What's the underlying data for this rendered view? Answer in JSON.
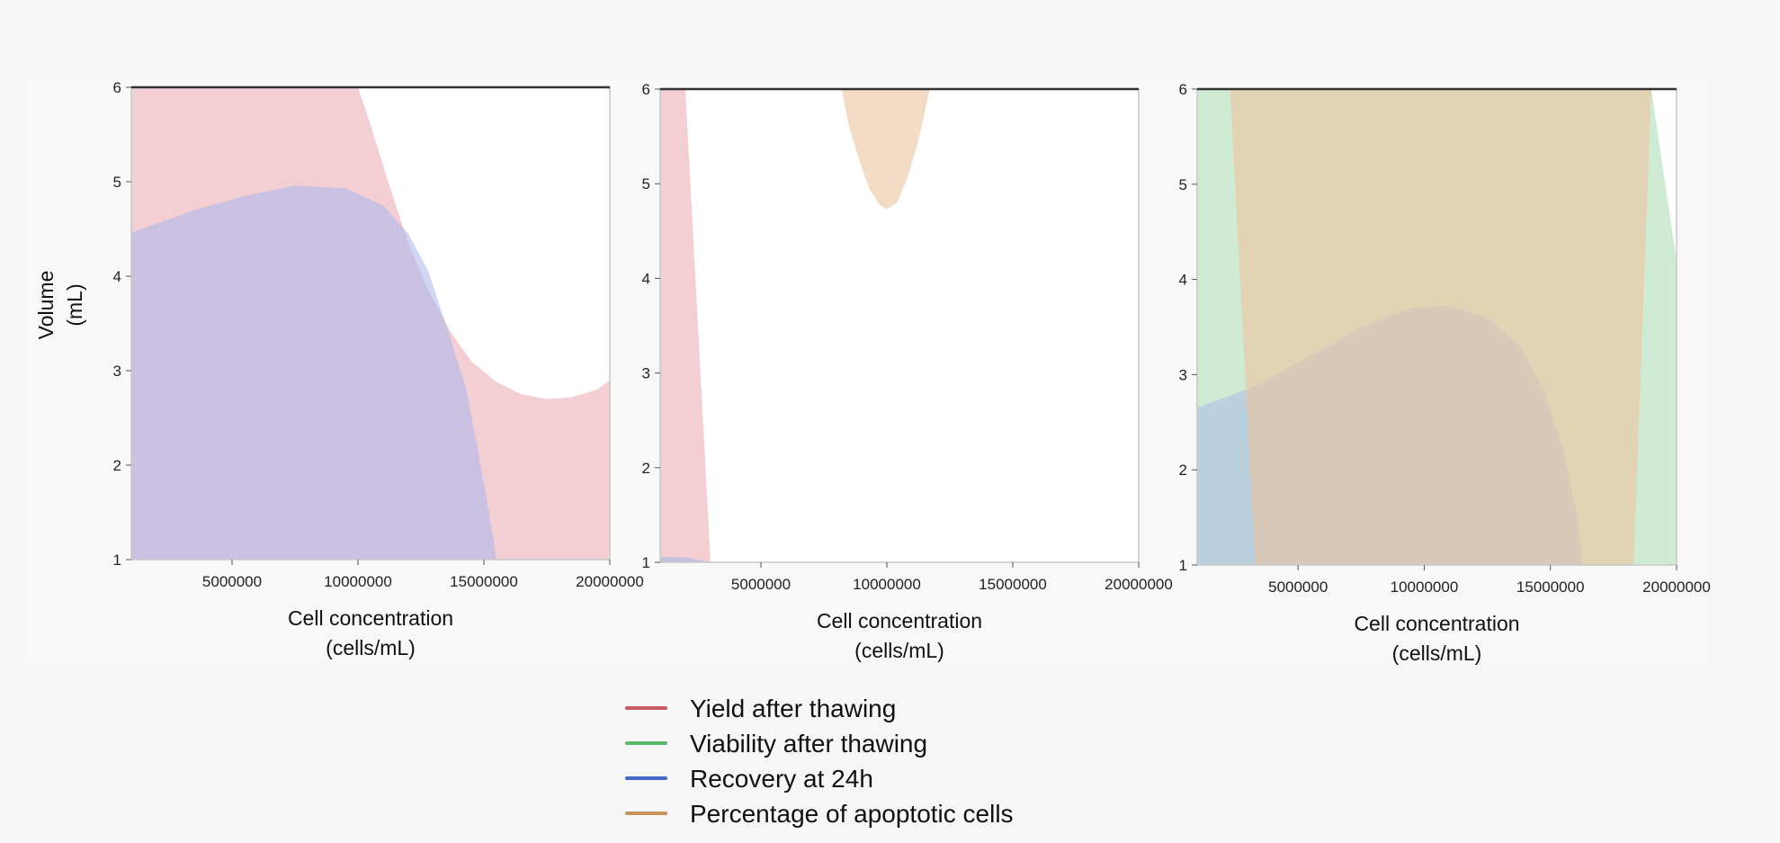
{
  "colors": {
    "yield": "#e8a0aa",
    "viability": "#9fd8a8",
    "recovery": "#a7b7ec",
    "apoptotic": "#ecc39e",
    "yield_line": "#c85a64",
    "viability_line": "#5bb86a",
    "recovery_line": "#4468c8",
    "apoptotic_line": "#c8935a"
  },
  "legend": [
    {
      "key": "yield",
      "label": "Yield after thawing"
    },
    {
      "key": "viability",
      "label": "Viability after thawing"
    },
    {
      "key": "recovery",
      "label": "Recovery at 24h"
    },
    {
      "key": "apoptotic",
      "label": "Percentage of apoptotic cells"
    }
  ],
  "chart_data": [
    {
      "type": "area",
      "title": "",
      "xlabel": "Cell concentration",
      "xlabel_unit": "(cells/mL)",
      "ylabel": "Volume",
      "ylabel_unit": "(mL)",
      "xlim": [
        1000000,
        20000000
      ],
      "ylim": [
        1,
        6
      ],
      "xticks": [
        5000000,
        10000000,
        15000000,
        20000000
      ],
      "yticks": [
        1,
        2,
        3,
        4,
        5,
        6
      ],
      "regions": [
        {
          "series": "yield",
          "opacity": 0.5,
          "polygon": [
            [
              1000000,
              1
            ],
            [
              20000000,
              1
            ],
            [
              20000000,
              2.9
            ],
            [
              19500000,
              2.8
            ],
            [
              18500000,
              2.72
            ],
            [
              17500000,
              2.7
            ],
            [
              16500000,
              2.75
            ],
            [
              15500000,
              2.88
            ],
            [
              14500000,
              3.1
            ],
            [
              13700000,
              3.4
            ],
            [
              12800000,
              3.85
            ],
            [
              12000000,
              4.35
            ],
            [
              11200000,
              5
            ],
            [
              10500000,
              5.6
            ],
            [
              10000000,
              6
            ],
            [
              1000000,
              6
            ]
          ]
        },
        {
          "series": "recovery",
          "opacity": 0.55,
          "polygon": [
            [
              1000000,
              1
            ],
            [
              15500000,
              1
            ],
            [
              15200000,
              1.5
            ],
            [
              14800000,
              2.1
            ],
            [
              14300000,
              2.8
            ],
            [
              13600000,
              3.4
            ],
            [
              12800000,
              4.05
            ],
            [
              12000000,
              4.45
            ],
            [
              11000000,
              4.75
            ],
            [
              9500000,
              4.93
            ],
            [
              7500000,
              4.96
            ],
            [
              5500000,
              4.85
            ],
            [
              3500000,
              4.7
            ],
            [
              1000000,
              4.46
            ]
          ]
        }
      ]
    },
    {
      "type": "area",
      "title": "",
      "xlabel": "Cell concentration",
      "xlabel_unit": "(cells/mL)",
      "ylabel": "",
      "ylabel_unit": "",
      "xlim": [
        1000000,
        20000000
      ],
      "ylim": [
        1,
        6
      ],
      "xticks": [
        5000000,
        10000000,
        15000000,
        20000000
      ],
      "yticks": [
        1,
        2,
        3,
        4,
        5,
        6
      ],
      "regions": [
        {
          "series": "yield",
          "opacity": 0.5,
          "polygon": [
            [
              1000000,
              1
            ],
            [
              3000000,
              1
            ],
            [
              2000000,
              6
            ],
            [
              1000000,
              6
            ]
          ]
        },
        {
          "series": "recovery",
          "opacity": 0.6,
          "polygon": [
            [
              1000000,
              1
            ],
            [
              3000000,
              1
            ],
            [
              2000000,
              1.05
            ],
            [
              1000000,
              1.06
            ]
          ]
        },
        {
          "series": "apoptotic",
          "opacity": 0.6,
          "polygon": [
            [
              8200000,
              6
            ],
            [
              8500000,
              5.6
            ],
            [
              8900000,
              5.25
            ],
            [
              9300000,
              4.95
            ],
            [
              9700000,
              4.78
            ],
            [
              10000000,
              4.73
            ],
            [
              10400000,
              4.8
            ],
            [
              10800000,
              5.05
            ],
            [
              11200000,
              5.4
            ],
            [
              11500000,
              5.75
            ],
            [
              11700000,
              6
            ]
          ]
        }
      ]
    },
    {
      "type": "area",
      "title": "",
      "xlabel": "Cell concentration",
      "xlabel_unit": "(cells/mL)",
      "ylabel": "",
      "ylabel_unit": "",
      "xlim": [
        1000000,
        20000000
      ],
      "ylim": [
        1,
        6
      ],
      "xticks": [
        5000000,
        10000000,
        15000000,
        20000000
      ],
      "yticks": [
        1,
        2,
        3,
        4,
        5,
        6
      ],
      "regions": [
        {
          "series": "viability",
          "opacity": 0.5,
          "polygon": [
            [
              1000000,
              1
            ],
            [
              20000000,
              1
            ],
            [
              20000000,
              4.2
            ],
            [
              19000000,
              6
            ],
            [
              1000000,
              6
            ]
          ]
        },
        {
          "series": "recovery",
          "opacity": 0.5,
          "polygon": [
            [
              1000000,
              1
            ],
            [
              16300000,
              1
            ],
            [
              16000000,
              1.6
            ],
            [
              15500000,
              2.2
            ],
            [
              14800000,
              2.8
            ],
            [
              13800000,
              3.3
            ],
            [
              12500000,
              3.6
            ],
            [
              11000000,
              3.72
            ],
            [
              9500000,
              3.7
            ],
            [
              7500000,
              3.5
            ],
            [
              5500000,
              3.2
            ],
            [
              3500000,
              2.9
            ],
            [
              1000000,
              2.65
            ]
          ]
        },
        {
          "series": "apoptotic",
          "opacity": 0.6,
          "polygon": [
            [
              3300000,
              1
            ],
            [
              18300000,
              1
            ],
            [
              19000000,
              6
            ],
            [
              2300000,
              6
            ]
          ]
        }
      ]
    }
  ]
}
